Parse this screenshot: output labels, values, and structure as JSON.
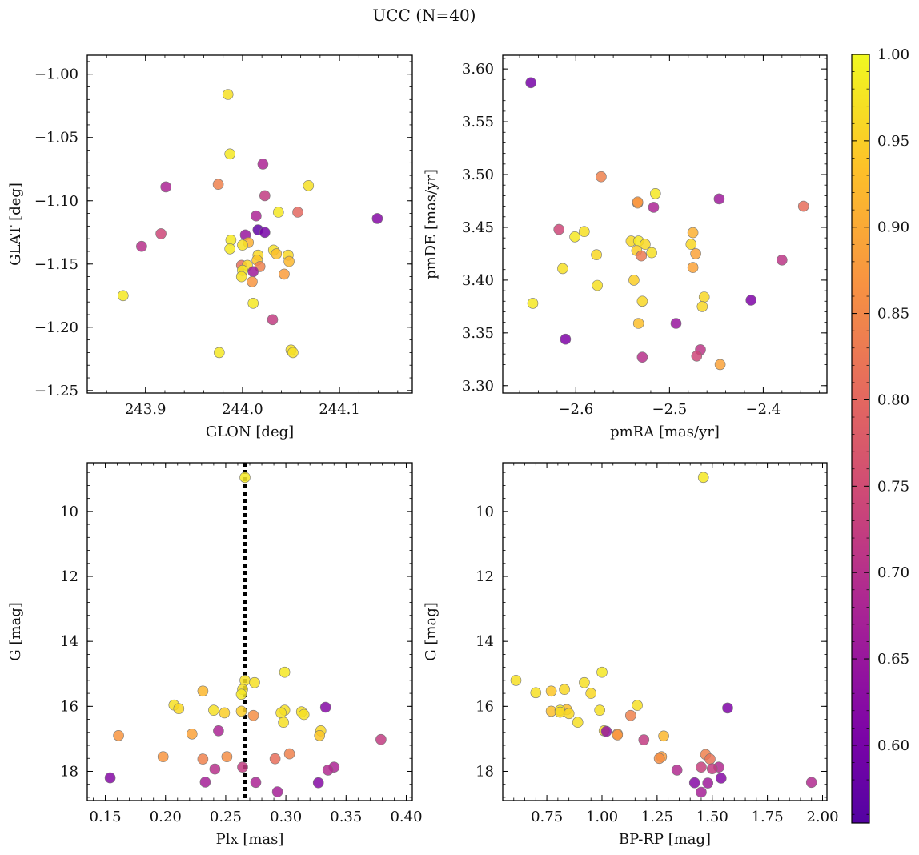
{
  "figure": {
    "title": "UCC (N=40)"
  },
  "colorbar": {
    "min": 0.555,
    "max": 1.0,
    "ticks": [
      "0.60",
      "0.65",
      "0.70",
      "0.75",
      "0.80",
      "0.85",
      "0.90",
      "0.95",
      "1.00"
    ],
    "tick_values": [
      0.6,
      0.65,
      0.7,
      0.75,
      0.8,
      0.85,
      0.9,
      0.95,
      1.0
    ],
    "colormap": "plasma"
  },
  "chart_data": [
    {
      "type": "scatter",
      "panel": "top-left",
      "xlabel": "GLON [deg]",
      "ylabel": "GLAT [deg]",
      "xlim": [
        243.84,
        244.175
      ],
      "ylim": [
        -1.252,
        -0.985
      ],
      "xticks": [
        "243.9",
        "244.0",
        "244.1"
      ],
      "xtick_values": [
        243.9,
        244.0,
        244.1
      ],
      "yticks": [
        "−1.00",
        "−1.05",
        "−1.10",
        "−1.15",
        "−1.20",
        "−1.25"
      ],
      "ytick_values": [
        -1.0,
        -1.05,
        -1.1,
        -1.15,
        -1.2,
        -1.25
      ],
      "points": [
        [
          243.985,
          -1.016,
          0.97
        ],
        [
          243.987,
          -1.063,
          0.98
        ],
        [
          244.021,
          -1.071,
          0.68
        ],
        [
          244.068,
          -1.088,
          0.97
        ],
        [
          243.975,
          -1.087,
          0.84
        ],
        [
          243.921,
          -1.089,
          0.68
        ],
        [
          244.023,
          -1.096,
          0.72
        ],
        [
          244.037,
          -1.109,
          0.98
        ],
        [
          244.057,
          -1.109,
          0.8
        ],
        [
          244.014,
          -1.112,
          0.68
        ],
        [
          244.139,
          -1.114,
          0.62
        ],
        [
          244.016,
          -1.123,
          0.57
        ],
        [
          244.023,
          -1.125,
          0.6
        ],
        [
          243.916,
          -1.126,
          0.74
        ],
        [
          244.003,
          -1.127,
          0.65
        ],
        [
          243.896,
          -1.136,
          0.7
        ],
        [
          243.988,
          -1.131,
          0.98
        ],
        [
          244.006,
          -1.133,
          0.91
        ],
        [
          244.0,
          -1.135,
          0.97
        ],
        [
          243.987,
          -1.138,
          0.98
        ],
        [
          244.032,
          -1.139,
          0.97
        ],
        [
          244.035,
          -1.142,
          0.93
        ],
        [
          244.016,
          -1.143,
          0.96
        ],
        [
          244.047,
          -1.143,
          0.96
        ],
        [
          244.015,
          -1.147,
          0.94
        ],
        [
          244.048,
          -1.148,
          0.92
        ],
        [
          244.018,
          -1.152,
          0.84
        ],
        [
          243.999,
          -1.151,
          0.81
        ],
        [
          244.005,
          -1.151,
          0.96
        ],
        [
          244.011,
          -1.156,
          0.66
        ],
        [
          244.0,
          -1.155,
          0.98
        ],
        [
          244.043,
          -1.158,
          0.88
        ],
        [
          243.999,
          -1.16,
          0.97
        ],
        [
          244.01,
          -1.164,
          0.87
        ],
        [
          243.877,
          -1.175,
          0.98
        ],
        [
          244.011,
          -1.181,
          0.98
        ],
        [
          244.031,
          -1.194,
          0.72
        ],
        [
          244.05,
          -1.218,
          0.97
        ],
        [
          244.052,
          -1.22,
          0.97
        ],
        [
          243.976,
          -1.22,
          0.98
        ]
      ]
    },
    {
      "type": "scatter",
      "panel": "top-right",
      "xlabel": "pmRA [mas/yr]",
      "ylabel": "pmDE [mas/yr]",
      "xlim": [
        -2.678,
        -2.332
      ],
      "ylim": [
        3.293,
        3.613
      ],
      "xticks": [
        "−2.6",
        "−2.5",
        "−2.4"
      ],
      "xtick_values": [
        -2.6,
        -2.5,
        -2.4
      ],
      "yticks": [
        "3.30",
        "3.35",
        "3.40",
        "3.45",
        "3.50",
        "3.55",
        "3.60"
      ],
      "ytick_values": [
        3.3,
        3.35,
        3.4,
        3.45,
        3.5,
        3.55,
        3.6
      ],
      "points": [
        [
          -2.648,
          3.587,
          0.6
        ],
        [
          -2.573,
          3.498,
          0.84
        ],
        [
          -2.515,
          3.482,
          0.98
        ],
        [
          -2.447,
          3.477,
          0.66
        ],
        [
          -2.534,
          3.473,
          0.88
        ],
        [
          -2.534,
          3.474,
          0.87
        ],
        [
          -2.517,
          3.469,
          0.68
        ],
        [
          -2.357,
          3.47,
          0.81
        ],
        [
          -2.618,
          3.448,
          0.74
        ],
        [
          -2.591,
          3.446,
          0.97
        ],
        [
          -2.475,
          3.445,
          0.91
        ],
        [
          -2.601,
          3.441,
          0.98
        ],
        [
          -2.541,
          3.437,
          0.96
        ],
        [
          -2.533,
          3.437,
          0.98
        ],
        [
          -2.526,
          3.434,
          0.96
        ],
        [
          -2.477,
          3.434,
          0.96
        ],
        [
          -2.535,
          3.428,
          0.95
        ],
        [
          -2.519,
          3.426,
          0.97
        ],
        [
          -2.578,
          3.424,
          0.96
        ],
        [
          -2.53,
          3.423,
          0.83
        ],
        [
          -2.472,
          3.425,
          0.89
        ],
        [
          -2.38,
          3.419,
          0.71
        ],
        [
          -2.614,
          3.411,
          0.97
        ],
        [
          -2.475,
          3.412,
          0.89
        ],
        [
          -2.538,
          3.4,
          0.95
        ],
        [
          -2.577,
          3.395,
          0.97
        ],
        [
          -2.463,
          3.384,
          0.96
        ],
        [
          -2.646,
          3.378,
          0.98
        ],
        [
          -2.413,
          3.381,
          0.61
        ],
        [
          -2.529,
          3.38,
          0.96
        ],
        [
          -2.465,
          3.375,
          0.96
        ],
        [
          -2.533,
          3.359,
          0.93
        ],
        [
          -2.493,
          3.359,
          0.65
        ],
        [
          -2.611,
          3.344,
          0.61
        ],
        [
          -2.467,
          3.334,
          0.71
        ],
        [
          -2.529,
          3.327,
          0.7
        ],
        [
          -2.471,
          3.328,
          0.74
        ],
        [
          -2.446,
          3.32,
          0.89
        ]
      ]
    },
    {
      "type": "scatter",
      "panel": "bottom-left",
      "xlabel": "Plx [mas]",
      "ylabel": "G [mag]",
      "xlim": [
        0.135,
        0.405
      ],
      "ylim": [
        18.9,
        8.5
      ],
      "y_inverted": true,
      "vline": 0.266,
      "xticks": [
        "0.15",
        "0.20",
        "0.25",
        "0.30",
        "0.35",
        "0.40"
      ],
      "xtick_values": [
        0.15,
        0.2,
        0.25,
        0.3,
        0.35,
        0.4
      ],
      "yticks": [
        "10",
        "12",
        "14",
        "16",
        "18"
      ],
      "ytick_values": [
        10,
        12,
        14,
        16,
        18
      ],
      "points": [
        [
          0.266,
          8.95,
          0.98
        ],
        [
          0.299,
          14.95,
          0.98
        ],
        [
          0.266,
          15.2,
          0.97
        ],
        [
          0.274,
          15.27,
          0.97
        ],
        [
          0.264,
          15.48,
          0.97
        ],
        [
          0.231,
          15.53,
          0.92
        ],
        [
          0.263,
          15.63,
          0.98
        ],
        [
          0.207,
          15.96,
          0.97
        ],
        [
          0.211,
          16.07,
          0.96
        ],
        [
          0.333,
          16.03,
          0.62
        ],
        [
          0.24,
          16.12,
          0.97
        ],
        [
          0.299,
          16.12,
          0.97
        ],
        [
          0.263,
          16.15,
          0.95
        ],
        [
          0.249,
          16.2,
          0.95
        ],
        [
          0.296,
          16.2,
          0.97
        ],
        [
          0.313,
          16.17,
          0.97
        ],
        [
          0.315,
          16.25,
          0.97
        ],
        [
          0.273,
          16.28,
          0.86
        ],
        [
          0.298,
          16.49,
          0.97
        ],
        [
          0.329,
          16.75,
          0.96
        ],
        [
          0.244,
          16.75,
          0.68
        ],
        [
          0.222,
          16.85,
          0.89
        ],
        [
          0.161,
          16.9,
          0.87
        ],
        [
          0.328,
          16.9,
          0.94
        ],
        [
          0.379,
          17.02,
          0.72
        ],
        [
          0.303,
          17.46,
          0.84
        ],
        [
          0.198,
          17.55,
          0.87
        ],
        [
          0.251,
          17.55,
          0.86
        ],
        [
          0.231,
          17.62,
          0.84
        ],
        [
          0.291,
          17.61,
          0.81
        ],
        [
          0.264,
          17.87,
          0.72
        ],
        [
          0.34,
          17.87,
          0.68
        ],
        [
          0.241,
          17.93,
          0.7
        ],
        [
          0.335,
          17.96,
          0.69
        ],
        [
          0.154,
          18.2,
          0.62
        ],
        [
          0.233,
          18.33,
          0.67
        ],
        [
          0.275,
          18.34,
          0.68
        ],
        [
          0.327,
          18.35,
          0.62
        ],
        [
          0.293,
          18.63,
          0.67
        ]
      ]
    },
    {
      "type": "scatter",
      "panel": "bottom-right",
      "xlabel": "BP-RP [mag]",
      "ylabel": "G [mag]",
      "xlim": [
        0.55,
        2.02
      ],
      "ylim": [
        18.9,
        8.5
      ],
      "y_inverted": true,
      "xticks": [
        "0.75",
        "1.00",
        "1.25",
        "1.50",
        "1.75",
        "2.00"
      ],
      "xtick_values": [
        0.75,
        1.0,
        1.25,
        1.5,
        1.75,
        2.0
      ],
      "yticks": [
        "10",
        "12",
        "14",
        "16",
        "18"
      ],
      "ytick_values": [
        10,
        12,
        14,
        16,
        18
      ],
      "points": [
        [
          1.46,
          8.95,
          0.98
        ],
        [
          1.0,
          14.95,
          0.98
        ],
        [
          0.61,
          15.2,
          0.97
        ],
        [
          0.92,
          15.27,
          0.97
        ],
        [
          0.83,
          15.48,
          0.96
        ],
        [
          0.77,
          15.53,
          0.94
        ],
        [
          0.7,
          15.58,
          0.97
        ],
        [
          0.95,
          15.6,
          0.96
        ],
        [
          1.16,
          15.97,
          0.97
        ],
        [
          1.57,
          16.05,
          0.61
        ],
        [
          0.99,
          16.12,
          0.97
        ],
        [
          0.84,
          16.1,
          0.93
        ],
        [
          0.77,
          16.15,
          0.93
        ],
        [
          0.81,
          16.12,
          0.98
        ],
        [
          0.81,
          16.18,
          0.96
        ],
        [
          0.85,
          16.22,
          0.96
        ],
        [
          1.13,
          16.28,
          0.84
        ],
        [
          0.89,
          16.49,
          0.97
        ],
        [
          1.01,
          16.75,
          0.96
        ],
        [
          1.02,
          16.77,
          0.64
        ],
        [
          1.07,
          16.85,
          0.89
        ],
        [
          1.07,
          16.88,
          0.87
        ],
        [
          1.28,
          16.91,
          0.92
        ],
        [
          1.19,
          17.03,
          0.72
        ],
        [
          1.47,
          17.48,
          0.84
        ],
        [
          1.27,
          17.55,
          0.88
        ],
        [
          1.26,
          17.6,
          0.86
        ],
        [
          1.49,
          17.62,
          0.82
        ],
        [
          1.53,
          17.87,
          0.69
        ],
        [
          1.45,
          17.87,
          0.73
        ],
        [
          1.5,
          17.92,
          0.72
        ],
        [
          1.34,
          17.96,
          0.69
        ],
        [
          1.54,
          18.21,
          0.62
        ],
        [
          1.95,
          18.34,
          0.69
        ],
        [
          1.42,
          18.35,
          0.62
        ],
        [
          1.48,
          18.36,
          0.66
        ],
        [
          1.45,
          18.64,
          0.67
        ]
      ]
    }
  ]
}
